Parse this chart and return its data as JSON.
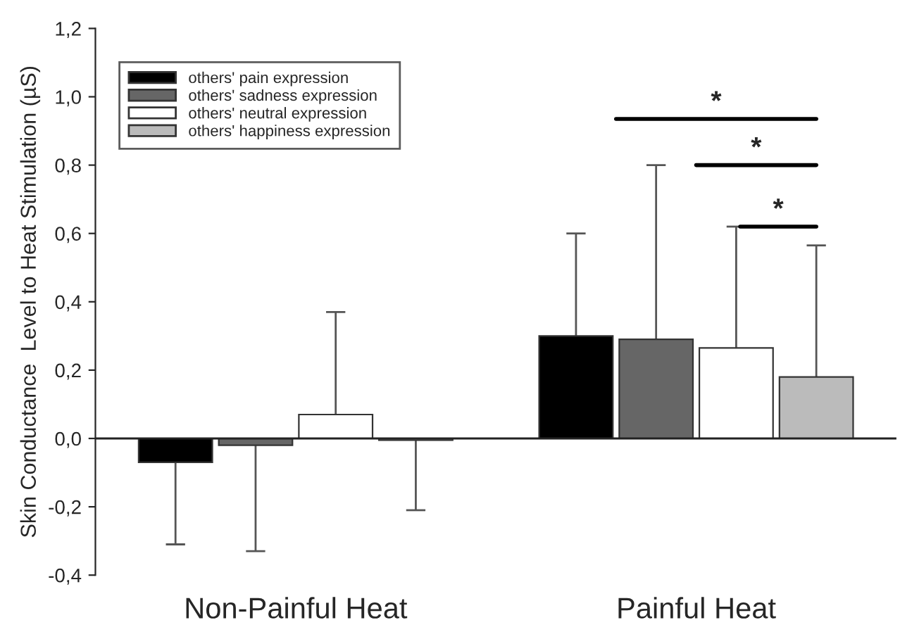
{
  "chart_data": {
    "type": "bar",
    "ylabel": "Skin Conductance  Level to Heat Stimulation (µS)",
    "categories": [
      "Non-Painful Heat",
      "Painful Heat"
    ],
    "series": [
      {
        "name": "others' pain expression",
        "color": "#000000",
        "values": [
          -0.07,
          0.3
        ],
        "errors": [
          [
            -0.31,
            -0.07
          ],
          [
            0.3,
            0.6
          ]
        ]
      },
      {
        "name": "others' sadness expression",
        "color": "#666666",
        "values": [
          -0.02,
          0.29
        ],
        "errors": [
          [
            -0.33,
            -0.02
          ],
          [
            0.29,
            0.8
          ]
        ]
      },
      {
        "name": "others' neutral expression",
        "color": "#ffffff",
        "values": [
          0.07,
          0.265
        ],
        "errors": [
          [
            0.07,
            0.37
          ],
          [
            0.265,
            0.62
          ]
        ]
      },
      {
        "name": "others' happiness expression",
        "color": "#bbbbbb",
        "values": [
          -0.005,
          0.18
        ],
        "errors": [
          [
            -0.21,
            -0.005
          ],
          [
            0.18,
            0.565
          ]
        ]
      }
    ],
    "ylim": [
      -0.4,
      1.2
    ],
    "yticks": [
      {
        "value": -0.4,
        "label": "-0,4"
      },
      {
        "value": -0.2,
        "label": "-0,2"
      },
      {
        "value": 0,
        "label": "0,0"
      },
      {
        "value": 0.2,
        "label": "0,2"
      },
      {
        "value": 0.4,
        "label": "0,4"
      },
      {
        "value": 0.6,
        "label": "0,6"
      },
      {
        "value": 0.8,
        "label": "0,8"
      },
      {
        "value": 1.0,
        "label": "1,0"
      },
      {
        "value": 1.2,
        "label": "1,2"
      }
    ],
    "annotations": [
      "*",
      "*",
      "*"
    ],
    "ref_lines": [
      {
        "axis": "y",
        "value": 0,
        "color": "#222222",
        "line_style": "solid"
      }
    ],
    "legend": "top left",
    "grid": false
  }
}
